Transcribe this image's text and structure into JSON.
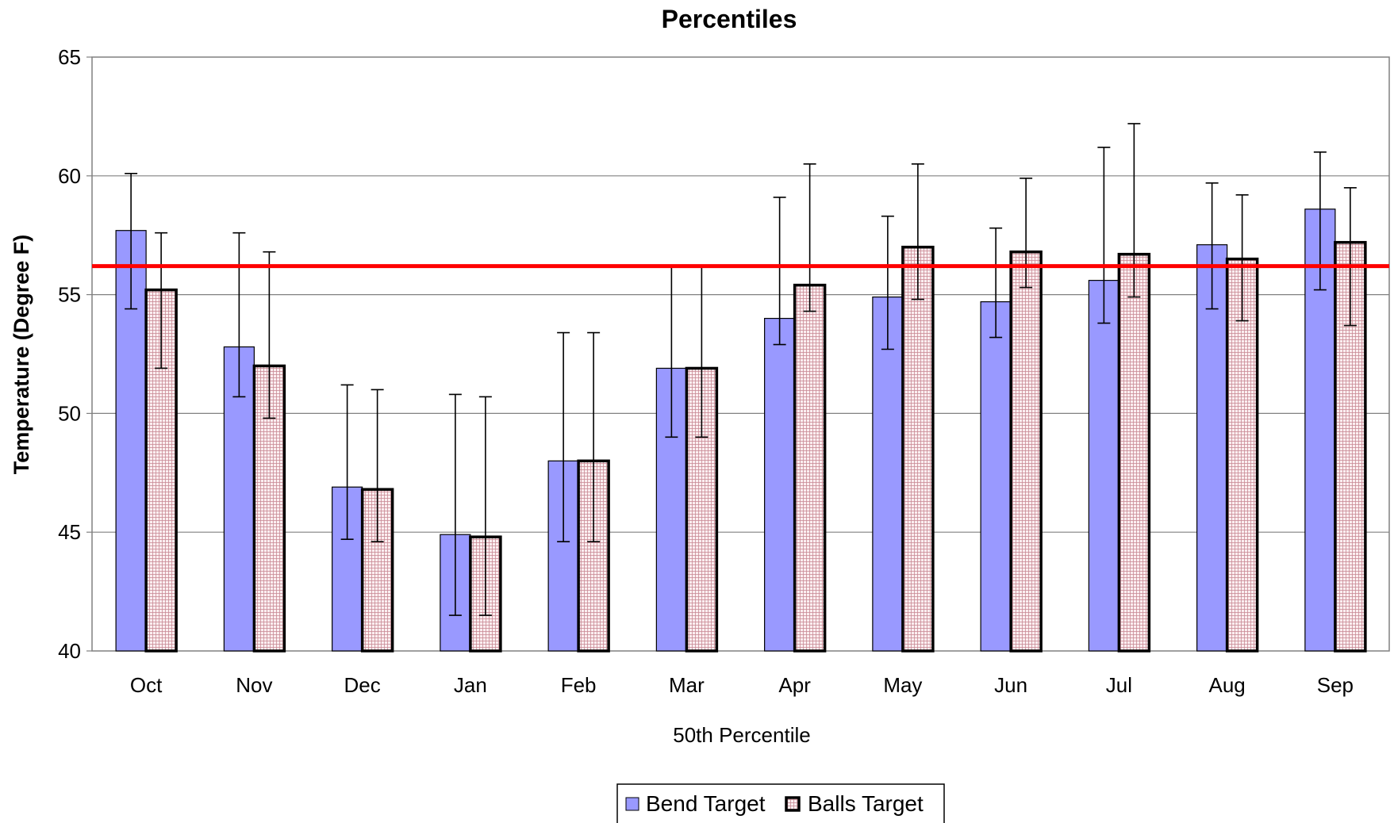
{
  "chart_data": {
    "type": "bar",
    "title": "Percentiles",
    "xlabel": "50th Percentile",
    "ylabel": "Temperature (Degree F)",
    "ylim": [
      40,
      65
    ],
    "yticks": [
      40,
      45,
      50,
      55,
      60,
      65
    ],
    "grid": true,
    "legend_position": "bottom",
    "categories": [
      "Oct",
      "Nov",
      "Dec",
      "Jan",
      "Feb",
      "Mar",
      "Apr",
      "May",
      "Jun",
      "Jul",
      "Aug",
      "Sep"
    ],
    "series": [
      {
        "name": "Bend Target",
        "color": "#9999ff",
        "values": [
          57.7,
          52.8,
          46.9,
          44.9,
          48.0,
          51.9,
          54.0,
          54.9,
          54.7,
          55.6,
          57.1,
          58.6
        ],
        "error_low": [
          54.4,
          50.7,
          44.7,
          41.5,
          44.6,
          49.0,
          52.9,
          52.7,
          53.2,
          53.8,
          54.4,
          55.2
        ],
        "error_high": [
          60.1,
          57.6,
          51.2,
          50.8,
          53.4,
          56.2,
          59.1,
          58.3,
          57.8,
          61.2,
          59.7,
          61.0
        ]
      },
      {
        "name": "Balls Target",
        "color": "#f4d8dc",
        "values": [
          55.2,
          52.0,
          46.8,
          44.8,
          48.0,
          51.9,
          55.4,
          57.0,
          56.8,
          56.7,
          56.5,
          57.2
        ],
        "error_low": [
          51.9,
          49.8,
          44.6,
          41.5,
          44.6,
          49.0,
          54.3,
          54.8,
          55.3,
          54.9,
          53.9,
          53.7
        ],
        "error_high": [
          57.6,
          56.8,
          51.0,
          50.7,
          53.4,
          56.2,
          60.5,
          60.5,
          59.9,
          62.2,
          59.2,
          59.5
        ]
      }
    ],
    "reference_line": {
      "value": 56.2,
      "color": "#ff0000"
    }
  }
}
